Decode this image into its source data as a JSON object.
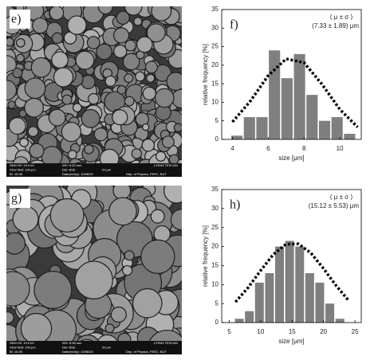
{
  "chart_data": [
    {
      "type": "histogram",
      "panel_label": "f)",
      "annotation": [
        "⟨ μ ± σ ⟩",
        "(7.33 ± 1.89) μm"
      ],
      "xlabel": "size [μm]",
      "ylabel": "relative frequency [%]",
      "bins": [
        3.9,
        4.6,
        5.3,
        6.0,
        6.7,
        7.4,
        8.1,
        8.8,
        9.5,
        10.2,
        10.9
      ],
      "values": [
        1,
        6,
        6,
        24,
        16.5,
        23,
        12,
        5,
        6,
        1.5
      ],
      "color": "#7f7f7f",
      "fit": {
        "x": [
          4,
          5,
          6,
          7,
          8,
          9,
          10,
          11
        ],
        "y": [
          4.7,
          10.3,
          17.2,
          21.7,
          20.7,
          14.9,
          8.1,
          3.3
        ],
        "color": "#000000"
      },
      "xlim": [
        3.4,
        11.2
      ],
      "xticks": [
        4,
        6,
        8,
        10
      ],
      "ylim": [
        0,
        35
      ],
      "yticks": [
        0,
        5,
        10,
        15,
        20,
        25,
        30,
        35
      ]
    },
    {
      "type": "histogram",
      "panel_label": "h)",
      "annotation": [
        "⟨ μ ± σ ⟩",
        "(15.12 ± 5.53) μm"
      ],
      "xlabel": "size [μm]",
      "ylabel": "relative frequency [%]",
      "bins": [
        5.8,
        7.4,
        9.0,
        10.6,
        12.2,
        13.8,
        15.4,
        17.0,
        18.6,
        20.2,
        21.8,
        23.4
      ],
      "values": [
        1,
        3,
        10.5,
        13,
        20,
        21.5,
        20,
        13,
        10.5,
        5,
        1
      ],
      "color": "#7f7f7f",
      "fit": {
        "x": [
          6,
          8,
          10,
          12,
          14,
          16,
          18,
          20,
          22,
          24
        ],
        "y": [
          5.4,
          9.2,
          13.7,
          17.9,
          20.6,
          20.7,
          18.3,
          14.2,
          9.7,
          5.8
        ],
        "color": "#000000"
      },
      "xlim": [
        3.8,
        26
      ],
      "xticks": [
        5,
        10,
        15,
        20,
        25
      ],
      "ylim": [
        0,
        35
      ],
      "yticks": [
        0,
        5,
        10,
        15,
        20,
        25,
        30,
        35
      ]
    }
  ],
  "panels": [
    {
      "label": "e)",
      "info": [
        "SEM HV: 10.0 kV",
        "WD: 8.00 mm",
        "LYRA3 TESCAN",
        "View field: 100 μm",
        "Det: BSE",
        "20 μm",
        "BI: 16.00",
        "Date(m/d/y): 10/06/20",
        "Dep. of Physics, FEEC, BUT"
      ]
    },
    {
      "label": "g)",
      "info": [
        "SEM HV: 10.0 kV",
        "WD: 8.98 mm",
        "LYRA3 TESCAN",
        "View field: 100 μm",
        "Det: BSE",
        "20 μm",
        "BI: 16.00",
        "Date(m/d/y): 10/06/20",
        "Dep. of Physics, FEEC, BUT"
      ]
    }
  ]
}
